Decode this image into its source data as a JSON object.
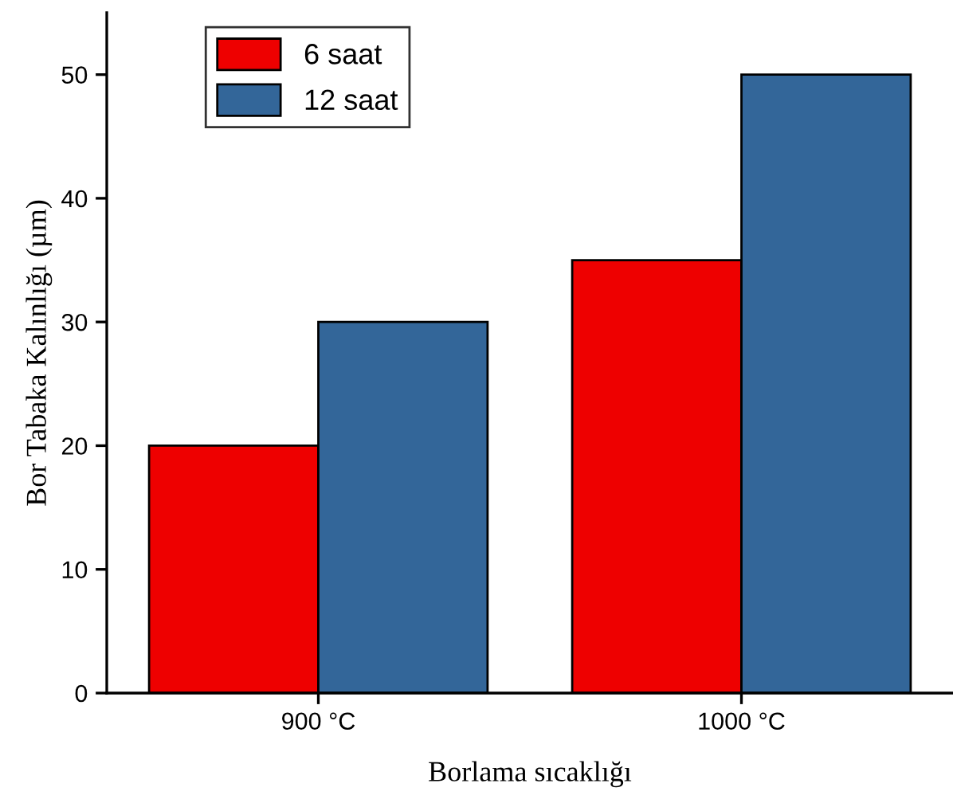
{
  "chart_data": {
    "type": "bar",
    "xlabel": "Borlama sıcaklığı",
    "ylabel": "Bor Tabaka Kalınlığı (µm)",
    "categories": [
      "900 °C",
      "1000 °C"
    ],
    "series": [
      {
        "name": "6 saat",
        "color": "#ee0000",
        "values": [
          20,
          35
        ]
      },
      {
        "name": "12 saat",
        "color": "#336699",
        "values": [
          30,
          50
        ]
      }
    ],
    "ylim": [
      0,
      55
    ],
    "yticks": [
      0,
      10,
      20,
      30,
      40,
      50
    ],
    "grid": false,
    "legend": "top left"
  }
}
